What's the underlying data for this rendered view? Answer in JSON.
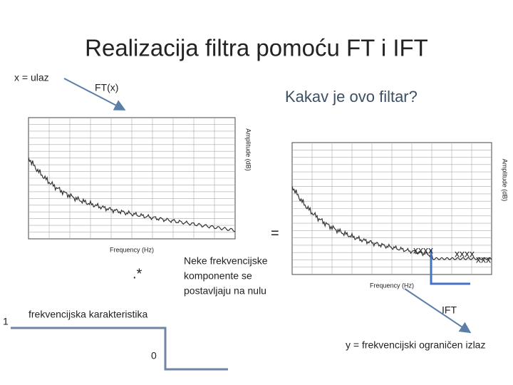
{
  "title": "Realizacija filtra pomoću FT i IFT",
  "labels": {
    "input": "x = ulaz",
    "ft": "FT(x)",
    "question": "Kakav je ovo filtar?",
    "equals": "=",
    "multiply": ".*",
    "response": "frekvencijska karakteristika",
    "one": "1",
    "zero": "0",
    "note": [
      "Neke frekvencijske",
      "komponente se",
      "postavljaju na nulu"
    ],
    "ift": "IFT",
    "output": "y = frekvencijski ograničen izlaz",
    "crosses": [
      "xxxx",
      "xxxx",
      "xxx"
    ]
  },
  "plots": [
    {
      "x_label": "Frequency (Hz)",
      "y_label": "Amplitude (dB)"
    },
    {
      "x_label": "Frequency (Hz)",
      "y_label": "Amplitude (dB)"
    }
  ]
}
